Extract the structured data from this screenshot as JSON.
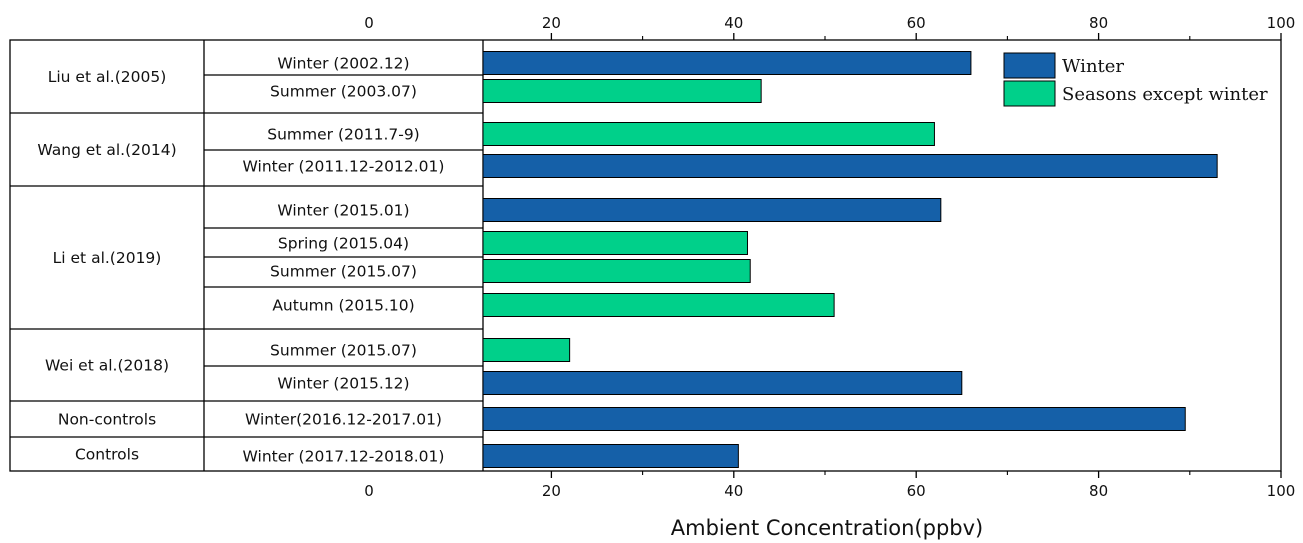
{
  "chart_data": {
    "type": "bar",
    "orientation": "horizontal",
    "title": "",
    "xlabel": "Ambient Concentration(ppbv)",
    "ylabel": "",
    "xlim": [
      0,
      100
    ],
    "xticks": [
      0,
      20,
      40,
      60,
      80,
      100
    ],
    "grid": false,
    "legend_position": "top-right",
    "legend": [
      {
        "name": "Winter",
        "color": "#1560a8"
      },
      {
        "name": "Seasons except winter",
        "color": "#00d08a"
      }
    ],
    "groups": [
      {
        "label": "Liu et al.(2005)",
        "rows": [
          {
            "label": "Winter (2002.12)",
            "value": 66,
            "series": "Winter"
          },
          {
            "label": "Summer (2003.07)",
            "value": 43,
            "series": "Seasons except winter"
          }
        ]
      },
      {
        "label": "Wang et al.(2014)",
        "rows": [
          {
            "label": "Summer (2011.7-9)",
            "value": 62,
            "series": "Seasons except winter"
          },
          {
            "label": "Winter (2011.12-2012.01)",
            "value": 93,
            "series": "Winter"
          }
        ]
      },
      {
        "label": "Li et al.(2019)",
        "rows": [
          {
            "label": "Winter  (2015.01)",
            "value": 62.7,
            "series": "Winter"
          },
          {
            "label": "Spring (2015.04)",
            "value": 41.5,
            "series": "Seasons except winter"
          },
          {
            "label": "Summer (2015.07)",
            "value": 41.8,
            "series": "Seasons except winter"
          },
          {
            "label": "Autumn (2015.10)",
            "value": 51,
            "series": "Seasons except winter"
          }
        ]
      },
      {
        "label": "Wei et al.(2018)",
        "rows": [
          {
            "label": "Summer (2015.07)",
            "value": 22,
            "series": "Seasons except winter"
          },
          {
            "label": "Winter (2015.12)",
            "value": 65,
            "series": "Winter"
          }
        ]
      },
      {
        "label": "Non-controls",
        "rows": [
          {
            "label": "Winter(2016.12-2017.01)",
            "value": 89.5,
            "series": "Winter"
          }
        ]
      },
      {
        "label": "Controls",
        "rows": [
          {
            "label": "Winter (2017.12-2018.01)",
            "value": 40.5,
            "series": "Winter"
          }
        ]
      }
    ]
  }
}
